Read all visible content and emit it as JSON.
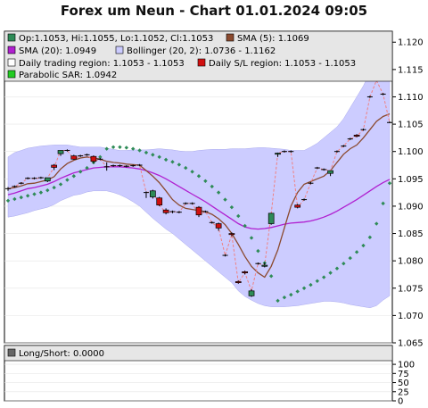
{
  "title": "Forex um Neun - Chart 01.01.2024 09:05",
  "colors": {
    "background": "#ffffff",
    "legend_bg": "#e6e6e6",
    "bollinger_fill": "#ccccff",
    "sma5": "#8b4a2f",
    "sma20": "#b020d0",
    "sar": "#2e8b57",
    "sl_line": "#f08080",
    "candle_up": "#2e8b57",
    "candle_down": "#d01010",
    "doji": "#000000",
    "grid": "#e6e6e6"
  },
  "legend": {
    "ohlc": "Op:1.1053, Hi:1.1055, Lo:1.1052, Cl:1.1053",
    "sma5": "SMA (5): 1.1069",
    "sma20": "SMA (20): 1.0949",
    "bollinger": "Bollinger (20, 2): 1.0736 - 1.1162",
    "trading_region": "Daily trading region: 1.1053 - 1.1053",
    "sl_region": "Daily S/L region: 1.1053 - 1.1053",
    "sar": "Parabolic SAR: 1.0942"
  },
  "lower_legend": {
    "longshort": "Long/Short: 0.0000"
  },
  "chart_data": [
    {
      "type": "candlestick",
      "ylim": [
        1.065,
        1.122
      ],
      "y_ticks": [
        "1.065",
        "1.070",
        "1.075",
        "1.080",
        "1.085",
        "1.090",
        "1.095",
        "1.100",
        "1.105",
        "1.110",
        "1.115",
        "1.120"
      ],
      "candles": [
        {
          "o": 1.0932,
          "h": 1.0935,
          "l": 1.0928,
          "c": 1.0931
        },
        {
          "o": 1.0936,
          "h": 1.0938,
          "l": 1.0934,
          "c": 1.0936
        },
        {
          "o": 1.0942,
          "h": 1.0944,
          "l": 1.094,
          "c": 1.0942
        },
        {
          "o": 1.0951,
          "h": 1.0953,
          "l": 1.0949,
          "c": 1.0951
        },
        {
          "o": 1.0951,
          "h": 1.0953,
          "l": 1.0949,
          "c": 1.095
        },
        {
          "o": 1.0952,
          "h": 1.0954,
          "l": 1.095,
          "c": 1.0952
        },
        {
          "o": 1.0946,
          "h": 1.095,
          "l": 1.0944,
          "c": 1.0952
        },
        {
          "o": 1.0975,
          "h": 1.0977,
          "l": 1.0966,
          "c": 1.0971
        },
        {
          "o": 1.0996,
          "h": 1.1,
          "l": 1.0992,
          "c": 1.1002
        },
        {
          "o": 1.1002,
          "h": 1.1004,
          "l": 1.1,
          "c": 1.1002
        },
        {
          "o": 1.0992,
          "h": 1.0994,
          "l": 1.0985,
          "c": 1.0986
        },
        {
          "o": 1.0992,
          "h": 1.0994,
          "l": 1.099,
          "c": 1.0992
        },
        {
          "o": 1.0994,
          "h": 1.0996,
          "l": 1.0992,
          "c": 1.0994
        },
        {
          "o": 1.0991,
          "h": 1.0993,
          "l": 1.0978,
          "c": 1.0982
        },
        {
          "o": 1.0986,
          "h": 1.0988,
          "l": 1.0984,
          "c": 1.0986
        },
        {
          "o": 1.0972,
          "h": 1.098,
          "l": 1.0965,
          "c": 1.0972
        },
        {
          "o": 1.0974,
          "h": 1.0976,
          "l": 1.0972,
          "c": 1.0974
        },
        {
          "o": 1.0974,
          "h": 1.0976,
          "l": 1.0972,
          "c": 1.0974
        },
        {
          "o": 1.0973,
          "h": 1.0975,
          "l": 1.0971,
          "c": 1.0973
        },
        {
          "o": 1.0974,
          "h": 1.0976,
          "l": 1.0972,
          "c": 1.0974
        },
        {
          "o": 1.0975,
          "h": 1.0977,
          "l": 1.0973,
          "c": 1.0975
        },
        {
          "o": 1.0925,
          "h": 1.0927,
          "l": 1.0915,
          "c": 1.0925
        },
        {
          "o": 1.0917,
          "h": 1.093,
          "l": 1.0914,
          "c": 1.0928
        },
        {
          "o": 1.0915,
          "h": 1.0917,
          "l": 1.09,
          "c": 1.0902
        },
        {
          "o": 1.0893,
          "h": 1.0896,
          "l": 1.0885,
          "c": 1.0888
        },
        {
          "o": 1.089,
          "h": 1.0892,
          "l": 1.0887,
          "c": 1.089
        },
        {
          "o": 1.0889,
          "h": 1.0891,
          "l": 1.0887,
          "c": 1.0889
        },
        {
          "o": 1.0905,
          "h": 1.0907,
          "l": 1.0903,
          "c": 1.0905
        },
        {
          "o": 1.0905,
          "h": 1.0907,
          "l": 1.0903,
          "c": 1.0905
        },
        {
          "o": 1.0898,
          "h": 1.09,
          "l": 1.088,
          "c": 1.0884
        },
        {
          "o": 1.089,
          "h": 1.0892,
          "l": 1.0888,
          "c": 1.089
        },
        {
          "o": 1.087,
          "h": 1.0872,
          "l": 1.0868,
          "c": 1.087
        },
        {
          "o": 1.0868,
          "h": 1.087,
          "l": 1.0855,
          "c": 1.086
        },
        {
          "o": 1.081,
          "h": 1.0812,
          "l": 1.0808,
          "c": 1.081
        },
        {
          "o": 1.085,
          "h": 1.0852,
          "l": 1.0845,
          "c": 1.0848
        },
        {
          "o": 1.0762,
          "h": 1.0764,
          "l": 1.0758,
          "c": 1.076
        },
        {
          "o": 1.078,
          "h": 1.0782,
          "l": 1.0775,
          "c": 1.0778
        },
        {
          "o": 1.0736,
          "h": 1.0748,
          "l": 1.0734,
          "c": 1.0745
        },
        {
          "o": 1.0795,
          "h": 1.0797,
          "l": 1.0793,
          "c": 1.0795
        },
        {
          "o": 1.079,
          "h": 1.0797,
          "l": 1.0788,
          "c": 1.0792
        },
        {
          "o": 1.0868,
          "h": 1.0888,
          "l": 1.0866,
          "c": 1.0887
        },
        {
          "o": 1.0995,
          "h": 1.0998,
          "l": 1.099,
          "c": 1.0997
        },
        {
          "o": 1.1,
          "h": 1.1002,
          "l": 1.0998,
          "c": 1.1
        },
        {
          "o": 1.1,
          "h": 1.1002,
          "l": 1.0998,
          "c": 1.1
        },
        {
          "o": 1.0902,
          "h": 1.0904,
          "l": 1.0896,
          "c": 1.0898
        },
        {
          "o": 1.0912,
          "h": 1.0914,
          "l": 1.091,
          "c": 1.0912
        },
        {
          "o": 1.0942,
          "h": 1.0944,
          "l": 1.094,
          "c": 1.0942
        },
        {
          "o": 1.097,
          "h": 1.0972,
          "l": 1.0968,
          "c": 1.097
        },
        {
          "o": 1.0967,
          "h": 1.0969,
          "l": 1.0965,
          "c": 1.0967
        },
        {
          "o": 1.096,
          "h": 1.0962,
          "l": 1.0955,
          "c": 1.0965
        },
        {
          "o": 1.1,
          "h": 1.1002,
          "l": 1.0998,
          "c": 1.1
        },
        {
          "o": 1.101,
          "h": 1.1012,
          "l": 1.1008,
          "c": 1.101
        },
        {
          "o": 1.1023,
          "h": 1.1025,
          "l": 1.1021,
          "c": 1.1023
        },
        {
          "o": 1.103,
          "h": 1.1032,
          "l": 1.1026,
          "c": 1.1028
        },
        {
          "o": 1.104,
          "h": 1.1042,
          "l": 1.1038,
          "c": 1.104
        },
        {
          "o": 1.11,
          "h": 1.1102,
          "l": 1.1098,
          "c": 1.11
        },
        {
          "o": 1.113,
          "h": 1.1132,
          "l": 1.1128,
          "c": 1.113
        },
        {
          "o": 1.1105,
          "h": 1.1107,
          "l": 1.1103,
          "c": 1.1105
        },
        {
          "o": 1.1053,
          "h": 1.1055,
          "l": 1.1052,
          "c": 1.1053
        }
      ],
      "sma5": [
        1.0932,
        1.0934,
        1.0937,
        1.0941,
        1.0942,
        1.0945,
        1.0948,
        1.0954,
        1.0968,
        1.0978,
        1.0984,
        1.0988,
        1.099,
        1.0988,
        1.0986,
        1.0982,
        1.098,
        1.0979,
        1.0977,
        1.0976,
        1.0975,
        1.0965,
        1.0955,
        1.0943,
        1.0928,
        1.0912,
        1.0902,
        1.0896,
        1.0894,
        1.0892,
        1.089,
        1.0885,
        1.0877,
        1.0866,
        1.085,
        1.083,
        1.0808,
        1.079,
        1.0778,
        1.077,
        1.079,
        1.082,
        1.086,
        1.09,
        1.0925,
        1.094,
        1.0945,
        1.095,
        1.0955,
        1.0965,
        1.098,
        1.0995,
        1.1005,
        1.1012,
        1.1025,
        1.104,
        1.1055,
        1.1064,
        1.1069
      ],
      "sma20": [
        1.0921,
        1.0924,
        1.0928,
        1.0932,
        1.0934,
        1.0937,
        1.094,
        1.0945,
        1.0951,
        1.0956,
        1.0961,
        1.0964,
        1.0967,
        1.097,
        1.0971,
        1.0972,
        1.0972,
        1.0972,
        1.0971,
        1.097,
        1.0968,
        1.0965,
        1.0961,
        1.0956,
        1.095,
        1.0943,
        1.0936,
        1.0929,
        1.0922,
        1.0915,
        1.0908,
        1.09,
        1.0892,
        1.0884,
        1.0876,
        1.0868,
        1.0862,
        1.0859,
        1.0858,
        1.0859,
        1.0861,
        1.0864,
        1.0867,
        1.0869,
        1.087,
        1.0871,
        1.0873,
        1.0876,
        1.088,
        1.0885,
        1.0891,
        1.0898,
        1.0905,
        1.0912,
        1.092,
        1.0928,
        1.0936,
        1.0943,
        1.0949
      ],
      "bb_upper": [
        1.099,
        1.0998,
        1.1002,
        1.1006,
        1.1008,
        1.101,
        1.1011,
        1.1012,
        1.1012,
        1.1012,
        1.101,
        1.1008,
        1.1008,
        1.1008,
        1.1008,
        1.1006,
        1.1004,
        1.1002,
        1.1002,
        1.1003,
        1.1003,
        1.1003,
        1.1004,
        1.1005,
        1.1004,
        1.1003,
        1.1001,
        1.1,
        1.1,
        1.1002,
        1.1003,
        1.1004,
        1.1004,
        1.1004,
        1.1005,
        1.1005,
        1.1005,
        1.1006,
        1.1007,
        1.1007,
        1.1006,
        1.1005,
        1.1004,
        1.1002,
        1.1002,
        1.1002,
        1.1008,
        1.1015,
        1.1025,
        1.1035,
        1.1045,
        1.106,
        1.108,
        1.11,
        1.112,
        1.1145,
        1.116,
        1.1162,
        1.1162
      ],
      "bb_lower": [
        1.088,
        1.0882,
        1.0885,
        1.0888,
        1.0892,
        1.0895,
        1.0898,
        1.0903,
        1.091,
        1.0915,
        1.092,
        1.0922,
        1.0926,
        1.0928,
        1.0928,
        1.0928,
        1.0925,
        1.0921,
        1.0915,
        1.0908,
        1.09,
        1.0889,
        1.0878,
        1.0868,
        1.0858,
        1.085,
        1.084,
        1.083,
        1.082,
        1.081,
        1.08,
        1.079,
        1.078,
        1.077,
        1.076,
        1.0745,
        1.0735,
        1.0728,
        1.0722,
        1.0718,
        1.0716,
        1.0716,
        1.0716,
        1.0717,
        1.0718,
        1.072,
        1.0722,
        1.0724,
        1.0726,
        1.0726,
        1.0725,
        1.0723,
        1.072,
        1.0718,
        1.0716,
        1.0714,
        1.0718,
        1.0728,
        1.0736
      ],
      "sar": [
        1.091,
        1.0913,
        1.0916,
        1.0919,
        1.0922,
        1.0925,
        1.0929,
        1.0934,
        1.094,
        1.0948,
        1.0955,
        1.0963,
        1.097,
        1.098,
        1.099,
        1.1005,
        1.1008,
        1.1008,
        1.1007,
        1.1005,
        1.1002,
        1.0998,
        1.0994,
        1.099,
        1.0985,
        1.0981,
        1.0976,
        1.097,
        1.0963,
        1.0955,
        1.0946,
        1.0936,
        1.0925,
        1.0912,
        1.0898,
        1.0882,
        1.0864,
        1.0842,
        1.0818,
        1.0796,
        1.0772,
        1.0727,
        1.0733,
        1.0738,
        1.0744,
        1.075,
        1.0756,
        1.0763,
        1.077,
        1.0778,
        1.0786,
        1.0795,
        1.0805,
        1.0816,
        1.0828,
        1.0843,
        1.0868,
        1.0905,
        1.0942
      ],
      "sl_line": [
        1.0931,
        1.0936,
        1.0942,
        1.0951,
        1.095,
        1.0952,
        1.0952,
        1.0971,
        1.1002,
        1.1002,
        1.0986,
        1.0992,
        1.0994,
        1.0982,
        1.0986,
        1.0972,
        1.0974,
        1.0974,
        1.0973,
        1.0974,
        1.0975,
        1.0925,
        1.0928,
        1.0902,
        1.0888,
        1.089,
        1.0889,
        1.0905,
        1.0905,
        1.0884,
        1.089,
        1.087,
        1.086,
        1.081,
        1.0848,
        1.076,
        1.0778,
        1.0745,
        1.0795,
        1.0792,
        1.0887,
        1.0997,
        1.1,
        1.1,
        1.0898,
        1.0912,
        1.0942,
        1.097,
        1.0967,
        1.0965,
        1.1,
        1.101,
        1.1023,
        1.1028,
        1.104,
        1.11,
        1.113,
        1.1105,
        1.1053
      ]
    },
    {
      "type": "line",
      "series": [
        {
          "values": []
        }
      ],
      "ylim": [
        0,
        110
      ],
      "y_ticks": [
        "0",
        "25",
        "50",
        "75",
        "100"
      ]
    }
  ]
}
